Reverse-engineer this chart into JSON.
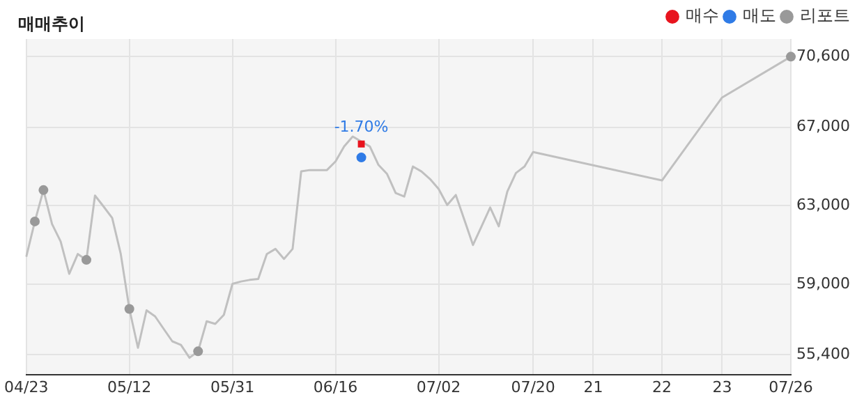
{
  "chart_data": {
    "type": "line",
    "title": "매매추이",
    "legend": "top right",
    "grid": true,
    "categories": [
      "04/23",
      null,
      null,
      null,
      null,
      null,
      null,
      null,
      null,
      null,
      null,
      null,
      "05/12",
      null,
      null,
      null,
      null,
      null,
      null,
      null,
      null,
      null,
      null,
      null,
      "05/31",
      null,
      null,
      null,
      null,
      null,
      null,
      null,
      null,
      null,
      null,
      null,
      "06/16",
      null,
      null,
      null,
      null,
      null,
      null,
      null,
      null,
      null,
      null,
      null,
      "07/02",
      null,
      null,
      null,
      null,
      null,
      null,
      null,
      null,
      null,
      null,
      "07/20",
      null,
      null,
      null,
      null,
      null,
      null,
      "21",
      null,
      null,
      null,
      null,
      null,
      null,
      null,
      "22",
      null,
      null,
      null,
      null,
      null,
      null,
      "23",
      null,
      null,
      null,
      null,
      null,
      null,
      null,
      "07/26"
    ],
    "ylim": [
      54400,
      71500
    ],
    "yticks": [
      {
        "value": 55400,
        "label": "55,400"
      },
      {
        "value": 59000,
        "label": "59,000"
      },
      {
        "value": 63000,
        "label": "63,000"
      },
      {
        "value": 67000,
        "label": "67,000"
      },
      {
        "value": 70600,
        "label": "70,600"
      }
    ],
    "annotations": [
      "-1.70%"
    ],
    "series": [
      {
        "color": "#c0c0c0",
        "marker": "none",
        "values": [
          60400,
          62200,
          63800,
          62070,
          61180,
          59530,
          60540,
          60240,
          63520,
          62960,
          62380,
          60540,
          57740,
          55760,
          57670,
          57360,
          56720,
          56090,
          55910,
          55250,
          55580,
          57110,
          56980,
          57440,
          59020,
          59140,
          59220,
          59270,
          60540,
          60800,
          60290,
          60800,
          64750,
          64820,
          64820,
          64820,
          65260,
          66020,
          66530,
          66270,
          66020,
          65080,
          64620,
          63650,
          63470,
          65000,
          64750,
          64360,
          63860,
          63040,
          63550,
          62280,
          61000,
          61950,
          62910,
          61950,
          63730,
          64670,
          65000,
          65740,
          null,
          null,
          null,
          null,
          null,
          null,
          null,
          null,
          null,
          null,
          null,
          null,
          null,
          null,
          64290,
          null,
          null,
          null,
          null,
          null,
          null,
          68520,
          null,
          null,
          null,
          null,
          null,
          null,
          null,
          70600
        ]
      },
      {
        "type": "scatter",
        "name": "매수",
        "color": "#e8141e",
        "marker": "square",
        "values": [
          null,
          null,
          null,
          null,
          null,
          null,
          null,
          null,
          null,
          null,
          null,
          null,
          null,
          null,
          null,
          null,
          null,
          null,
          null,
          null,
          null,
          null,
          null,
          null,
          null,
          null,
          null,
          null,
          null,
          null,
          null,
          null,
          null,
          null,
          null,
          null,
          null,
          null,
          null,
          66150,
          null,
          null,
          null,
          null,
          null,
          null,
          null,
          null,
          null,
          null,
          null,
          null,
          null,
          null,
          null,
          null,
          null,
          null,
          null,
          null,
          null,
          null,
          null,
          null,
          null,
          null,
          null,
          null,
          null,
          null,
          null,
          null,
          null,
          null,
          null,
          null,
          null,
          null,
          null,
          null,
          null,
          null,
          null,
          null,
          null,
          null,
          null,
          null,
          null,
          null
        ]
      },
      {
        "type": "scatter",
        "name": "매도",
        "color": "#2f7be6",
        "marker": "circle",
        "values": [
          null,
          null,
          null,
          null,
          null,
          null,
          null,
          null,
          null,
          null,
          null,
          null,
          null,
          null,
          null,
          null,
          null,
          null,
          null,
          null,
          null,
          null,
          null,
          null,
          null,
          null,
          null,
          null,
          null,
          null,
          null,
          null,
          null,
          null,
          null,
          null,
          null,
          null,
          null,
          65460,
          null,
          null,
          null,
          null,
          null,
          null,
          null,
          null,
          null,
          null,
          null,
          null,
          null,
          null,
          null,
          null,
          null,
          null,
          null,
          null,
          null,
          null,
          null,
          null,
          null,
          null,
          null,
          null,
          null,
          null,
          null,
          null,
          null,
          null,
          null,
          null,
          null,
          null,
          null,
          null,
          null,
          null,
          null,
          null,
          null,
          null,
          null,
          null,
          null,
          null
        ]
      },
      {
        "type": "scatter",
        "name": "리포트",
        "color": "#999999",
        "marker": "circle",
        "values": [
          null,
          62200,
          63800,
          null,
          null,
          null,
          null,
          60240,
          null,
          null,
          null,
          null,
          57740,
          null,
          null,
          null,
          null,
          null,
          null,
          null,
          55580,
          null,
          null,
          null,
          null,
          null,
          null,
          null,
          null,
          null,
          null,
          null,
          null,
          null,
          null,
          null,
          null,
          null,
          null,
          null,
          null,
          null,
          null,
          null,
          null,
          null,
          null,
          null,
          null,
          null,
          null,
          null,
          null,
          null,
          null,
          null,
          null,
          null,
          null,
          null,
          null,
          null,
          null,
          null,
          null,
          null,
          null,
          null,
          null,
          null,
          null,
          null,
          null,
          null,
          null,
          null,
          null,
          null,
          null,
          null,
          null,
          null,
          null,
          null,
          null,
          null,
          null,
          null,
          null,
          70600
        ]
      }
    ]
  }
}
